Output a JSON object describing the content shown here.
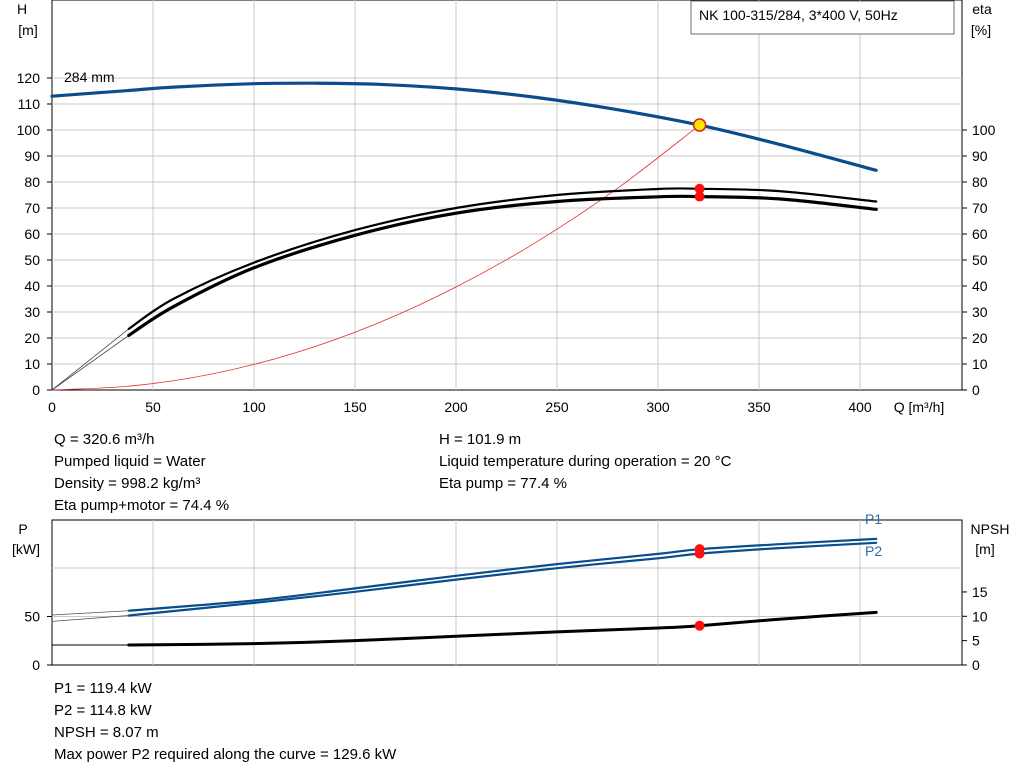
{
  "title_box": "NK 100-315/284, 3*400 V, 50Hz",
  "top_chart": {
    "y_left_label": [
      "H",
      "[m]"
    ],
    "y_right_label": [
      "eta",
      "[%]"
    ],
    "x_label": "Q [m³/h]",
    "x_ticks": [
      0,
      50,
      100,
      150,
      200,
      250,
      300,
      350,
      400
    ],
    "y_left_ticks": [
      0,
      10,
      20,
      30,
      40,
      50,
      60,
      70,
      80,
      90,
      100,
      110,
      120
    ],
    "y_right_ticks": [
      0,
      10,
      20,
      30,
      40,
      50,
      60,
      70,
      80,
      90,
      100
    ],
    "impeller_label": "284 mm"
  },
  "bottom_chart": {
    "y_left_label": [
      "P",
      "[kW]"
    ],
    "y_right_label": [
      "NPSH",
      "[m]"
    ],
    "y_left_ticks": [
      0,
      50
    ],
    "y_right_ticks": [
      0,
      5,
      10,
      15
    ],
    "p1_label": "P1",
    "p2_label": "P2"
  },
  "info_top_left": [
    "Q = 320.6 m³/h",
    "Pumped liquid = Water",
    "Density = 998.2 kg/m³",
    "Eta pump+motor = 74.4 %"
  ],
  "info_top_right": [
    "H = 101.9 m",
    "Liquid temperature during operation = 20 °C",
    "Eta pump = 77.4 %"
  ],
  "info_bottom": [
    "P1 = 119.4 kW",
    "P2 = 114.8 kW",
    "NPSH = 8.07 m",
    "Max power P2 required along the curve = 129.6 kW"
  ],
  "colors": {
    "head_curve": "#0b4d8c",
    "system_curve": "#e03030",
    "efficiency_curve": "#000000",
    "power_curve": "#0b4d8c",
    "npsh_curve": "#000000",
    "duty_point_fill": "#ffe800",
    "duty_point_stroke": "#e02020",
    "marker": "#ff1010",
    "grid": "#c8c8c8"
  },
  "chart_data": [
    {
      "type": "line",
      "title": "NK 100-315/284, 3*400 V, 50Hz",
      "xlabel": "Q [m³/h]",
      "ylabel": "H [m]",
      "y2label": "eta [%]",
      "xlim": [
        0,
        420
      ],
      "ylim": [
        0,
        130
      ],
      "series": [
        {
          "name": "284 mm",
          "axis": "left",
          "style": "head",
          "x": [
            0,
            38,
            60,
            100,
            130,
            160,
            200,
            240,
            280,
            320.6,
            360,
            408
          ],
          "y": [
            113,
            115.2,
            116.5,
            117.8,
            118.0,
            117.6,
            115.8,
            112.5,
            107.8,
            101.9,
            94.5,
            84.5
          ]
        },
        {
          "axis": "left",
          "style": "head-ext",
          "x": [
            0,
            38
          ],
          "y": [
            113,
            115.2
          ]
        },
        {
          "axis": "right",
          "style": "eta-pump",
          "x": [
            38,
            60,
            100,
            150,
            200,
            250,
            300,
            320.6,
            360,
            408
          ],
          "y": [
            23.5,
            35,
            49,
            61.5,
            70,
            75,
            77.3,
            77.4,
            76.5,
            72.5
          ]
        },
        {
          "axis": "right",
          "style": "eta-total",
          "x": [
            38,
            60,
            100,
            150,
            200,
            250,
            300,
            320.6,
            360,
            408
          ],
          "y": [
            21,
            32,
            47,
            59.5,
            68,
            72.5,
            74.3,
            74.4,
            73.5,
            69.5
          ]
        },
        {
          "axis": "right",
          "style": "eta-ext",
          "x": [
            0,
            38
          ],
          "y": [
            0,
            23.5
          ]
        },
        {
          "axis": "right",
          "style": "eta-ext",
          "x": [
            0,
            38
          ],
          "y": [
            0,
            21
          ]
        },
        {
          "axis": "left",
          "style": "system",
          "x": [
            0,
            40,
            80,
            120,
            160,
            200,
            240,
            280,
            320.6
          ],
          "y": [
            0,
            1.6,
            6.3,
            14.2,
            25.3,
            39.6,
            57.0,
            77.6,
            101.9
          ]
        }
      ],
      "duty_point": {
        "q": 320.6,
        "h": 101.9,
        "eta_pump": 77.4,
        "eta_total": 74.4
      }
    },
    {
      "type": "line",
      "ylabel": "P [kW]",
      "y2label": "NPSH [m]",
      "xlim": [
        0,
        420
      ],
      "series": [
        {
          "name": "P1",
          "axis": "left",
          "style": "power",
          "x": [
            38,
            100,
            150,
            200,
            250,
            300,
            320.6,
            360,
            408
          ],
          "y": [
            56.0,
            66.5,
            79.0,
            92.0,
            104.0,
            114.5,
            119.4,
            124.5,
            130.0
          ]
        },
        {
          "name": "P2",
          "axis": "left",
          "style": "power",
          "x": [
            38,
            100,
            150,
            200,
            250,
            300,
            320.6,
            360,
            408
          ],
          "y": [
            51.0,
            64.0,
            75.5,
            88.0,
            99.8,
            110.0,
            114.8,
            120.5,
            126.0
          ]
        },
        {
          "axis": "left",
          "style": "power-ext",
          "x": [
            0,
            38
          ],
          "y": [
            51.5,
            56.0
          ]
        },
        {
          "axis": "left",
          "style": "power-ext",
          "x": [
            0,
            38
          ],
          "y": [
            45.0,
            51.0
          ]
        },
        {
          "axis": "right",
          "style": "npsh",
          "x": [
            38,
            100,
            150,
            200,
            250,
            300,
            320.6,
            360,
            408
          ],
          "y": [
            4.1,
            4.4,
            5.0,
            5.9,
            6.8,
            7.6,
            8.07,
            9.4,
            10.8
          ]
        },
        {
          "axis": "right",
          "style": "npsh-ext",
          "x": [
            0,
            38
          ],
          "y": [
            4.1,
            4.1
          ]
        }
      ],
      "duty_point": {
        "q": 320.6,
        "p1": 119.4,
        "p2": 114.8,
        "npsh": 8.07
      }
    }
  ]
}
